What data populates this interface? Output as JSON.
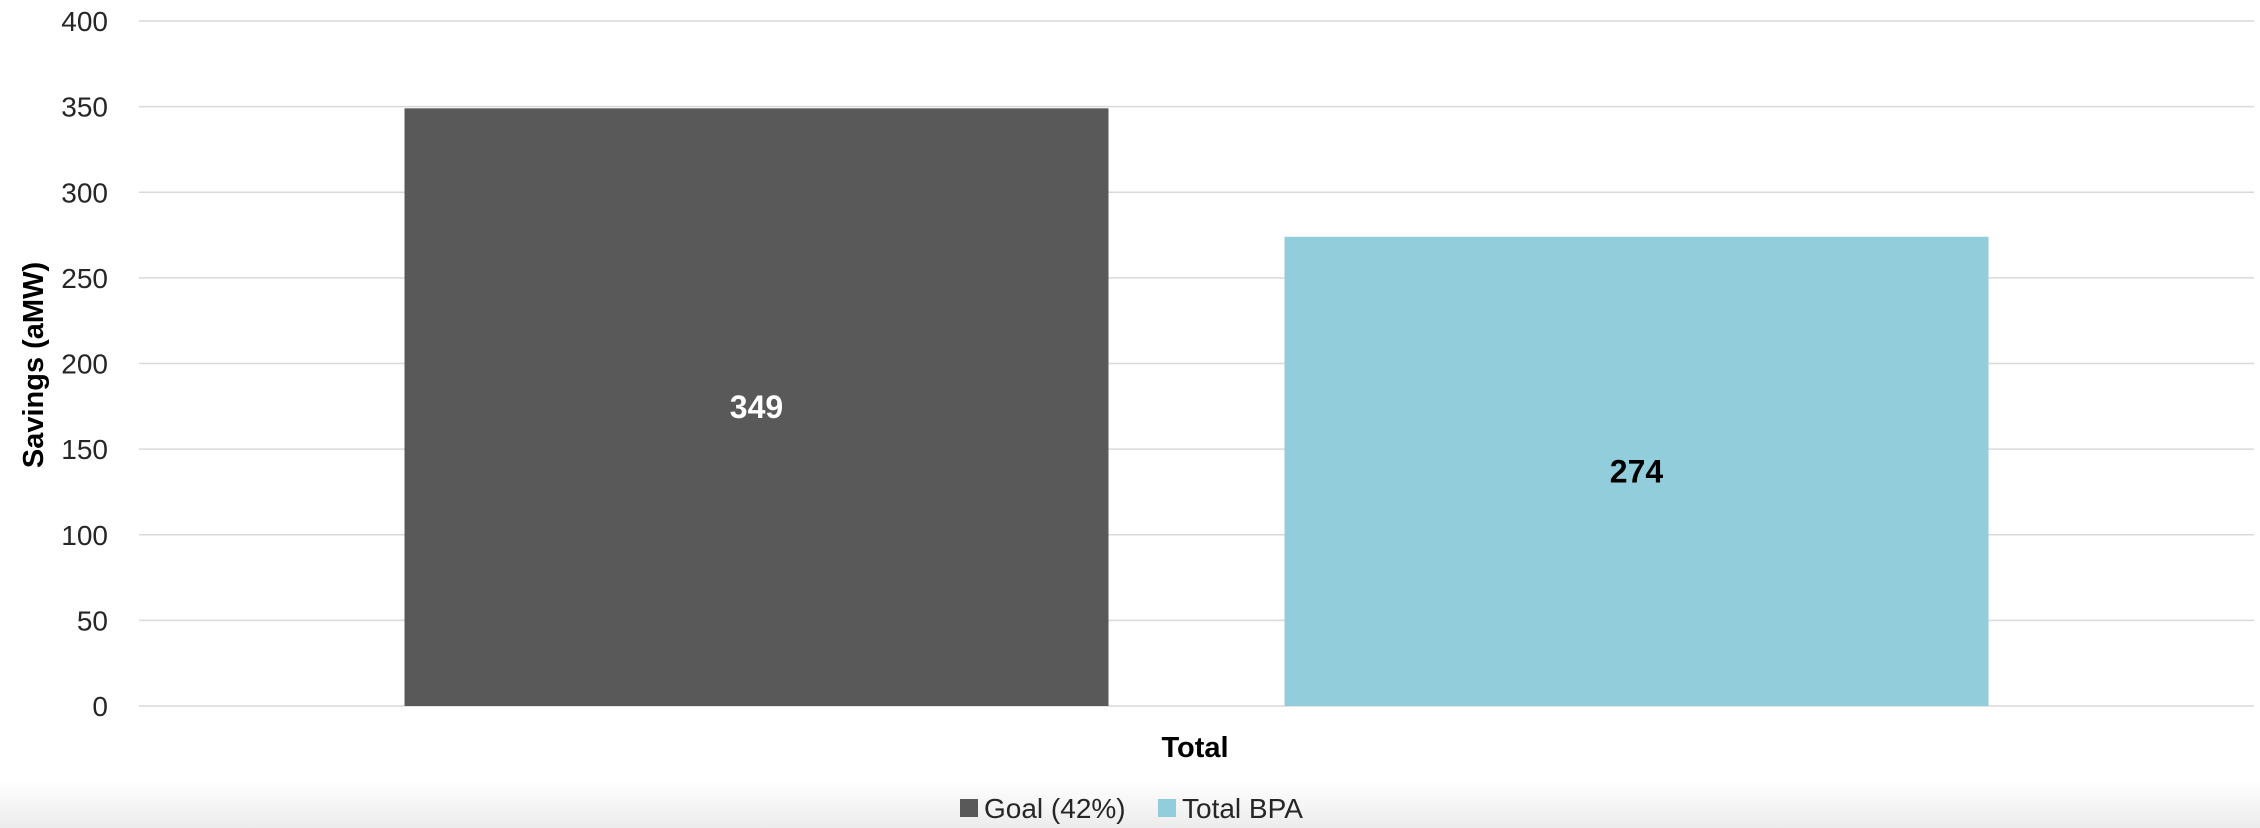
{
  "chart_data": {
    "type": "bar",
    "categories": [
      "Total"
    ],
    "series": [
      {
        "name": "Goal (42%)",
        "values": [
          349
        ],
        "color": "#595959",
        "label_color": "#ffffff"
      },
      {
        "name": "Total BPA",
        "values": [
          274
        ],
        "color": "#92cddb",
        "label_color": "#000000"
      }
    ],
    "xlabel": "Total",
    "ylabel": "Savings (aMW)",
    "ylim": [
      0,
      400
    ],
    "yticks": [
      0,
      50,
      100,
      150,
      200,
      250,
      300,
      350,
      400
    ],
    "grid": true,
    "gridline_color": "#d9d9d9",
    "legend_position": "bottom-center"
  }
}
